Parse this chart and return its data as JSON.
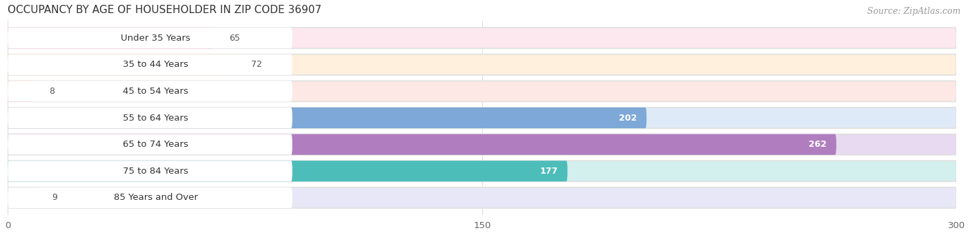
{
  "title": "OCCUPANCY BY AGE OF HOUSEHOLDER IN ZIP CODE 36907",
  "source": "Source: ZipAtlas.com",
  "categories": [
    "Under 35 Years",
    "35 to 44 Years",
    "45 to 54 Years",
    "55 to 64 Years",
    "65 to 74 Years",
    "75 to 84 Years",
    "85 Years and Over"
  ],
  "values": [
    65,
    72,
    8,
    202,
    262,
    177,
    9
  ],
  "bar_colors": [
    "#f799b4",
    "#f9c98a",
    "#f4a9a0",
    "#7da8d8",
    "#b07dbf",
    "#4dbdba",
    "#b8b4e0"
  ],
  "bar_bg_colors": [
    "#fde8ef",
    "#fef0dc",
    "#fde8e5",
    "#deeaf7",
    "#e8daf0",
    "#d3efee",
    "#e8e7f7"
  ],
  "xlim": [
    0,
    300
  ],
  "xticks": [
    0,
    150,
    300
  ],
  "background_color": "#ffffff",
  "title_fontsize": 11,
  "label_fontsize": 9.5,
  "value_fontsize": 9,
  "source_fontsize": 9
}
